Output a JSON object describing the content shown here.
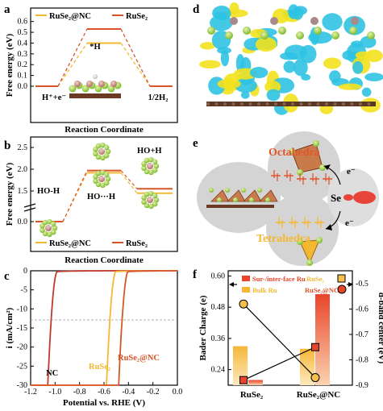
{
  "panels": {
    "a": {
      "label": "a",
      "ylabel": "Free energy (eV)",
      "xlabel": "Reaction Coordinate",
      "legend": [
        "RuSe₂@NC",
        "RuSe₂"
      ],
      "state_labels": [
        "H⁺+e⁻",
        "*H",
        "1/2H₂"
      ],
      "yticks": [
        "0.0",
        "0.1",
        "0.2",
        "0.3",
        "0.4",
        "0.5",
        "0.6"
      ],
      "colors": {
        "nc": "#f4b830",
        "ruse2": "#d8552a"
      }
    },
    "b": {
      "label": "b",
      "ylabel": "Free energy (eV)",
      "xlabel": "Reaction Coordinate",
      "legend": [
        "RuSe₂@NC",
        "RuSe₂"
      ],
      "state_labels": [
        "HO-H",
        "HO···H",
        "HO+H"
      ],
      "yticks": [
        "0.0",
        "1.5",
        "2.0",
        "2.5"
      ]
    },
    "c": {
      "label": "c",
      "ylabel": "i (mA/cm²)",
      "xlabel": "Potential vs. RHE (V)",
      "curve_labels": [
        "NC",
        "RuSe₂",
        "RuSe₂@NC"
      ],
      "yticks": [
        "0",
        "-5",
        "-10",
        "-15",
        "-20",
        "-25",
        "-30"
      ],
      "xticks": [
        "-1.2",
        "-1.0",
        "-0.8",
        "-0.6",
        "-0.4",
        "-0.2",
        "0.0"
      ]
    },
    "d": {
      "label": "d"
    },
    "e": {
      "label": "e",
      "octa_label": "Octahedra",
      "tetra_label": "Tetrahedra",
      "se_label": "Se",
      "electron_top": "e⁻",
      "electron_bottom": "e⁻"
    },
    "f": {
      "label": "f",
      "ylabel_left": "Bader Charge (e)",
      "ylabel_right": "d-band center (eV)",
      "categories": [
        "RuSe₂",
        "RuSe₂@NC"
      ],
      "legend": [
        "Sur-/inter-face Ru",
        "Bulk Ru",
        "RuSe₂",
        "RuSe₂@NC"
      ],
      "yticks_left": [
        "0.24",
        "0.36",
        "0.48",
        "0.60"
      ],
      "yticks_right": [
        "-0.5",
        "-0.6",
        "-0.7",
        "-0.8",
        "-0.9"
      ]
    }
  },
  "chart_data": [
    {
      "panel": "a",
      "type": "line",
      "title": "",
      "xlabel": "Reaction Coordinate",
      "ylabel": "Free energy (eV)",
      "ylim": [
        0,
        0.65
      ],
      "categories": [
        "H⁺+e⁻",
        "*H",
        "1/2H₂"
      ],
      "series": [
        {
          "name": "RuSe₂@NC",
          "values": [
            0,
            0.4,
            0
          ]
        },
        {
          "name": "RuSe₂",
          "values": [
            0,
            0.53,
            0
          ]
        }
      ]
    },
    {
      "panel": "b",
      "type": "line",
      "title": "",
      "xlabel": "Reaction Coordinate",
      "ylabel": "Free energy (eV)",
      "categories": [
        "HO-H",
        "HO···H",
        "HO+H"
      ],
      "series": [
        {
          "name": "RuSe₂@NC",
          "values": [
            0,
            1.92,
            1.45
          ]
        },
        {
          "name": "RuSe₂",
          "values": [
            0,
            1.97,
            1.55
          ]
        }
      ]
    },
    {
      "panel": "c",
      "type": "line",
      "title": "",
      "xlabel": "Potential vs. RHE (V)",
      "ylabel": "i (mA/cm²)",
      "xlim": [
        -1.2,
        0.0
      ],
      "ylim": [
        -30,
        0
      ],
      "series": [
        {
          "name": "NC",
          "onset": -0.98
        },
        {
          "name": "RuSe₂",
          "onset": -0.5
        },
        {
          "name": "RuSe₂@NC",
          "onset": -0.4
        }
      ]
    },
    {
      "panel": "f",
      "type": "bar",
      "title": "",
      "ylabel": "Bader Charge (e)",
      "ylim": [
        0.18,
        0.62
      ],
      "categories": [
        "RuSe₂",
        "RuSe₂@NC"
      ],
      "series": [
        {
          "name": "Bulk Ru",
          "values": [
            0.33,
            0.32
          ]
        },
        {
          "name": "Sur-/inter-face Ru",
          "values": [
            0.2,
            0.53
          ]
        }
      ],
      "dband": {
        "ylabel": "d-band center (eV)",
        "ylim": [
          -0.9,
          -0.5
        ],
        "RuSe2": [
          -0.58,
          -0.88
        ],
        "RuSe2@NC": [
          -0.75,
          -0.87
        ]
      }
    }
  ]
}
